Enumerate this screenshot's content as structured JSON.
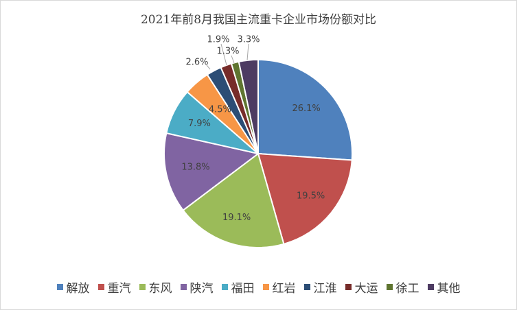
{
  "chart_data": {
    "type": "pie",
    "title": "2021年前8月我国主流重卡企业市场份额对比",
    "categories": [
      "解放",
      "重汽",
      "东风",
      "陕汽",
      "福田",
      "红岩",
      "江淮",
      "大运",
      "徐工",
      "其他"
    ],
    "values": [
      26.1,
      19.5,
      19.1,
      13.8,
      7.9,
      4.5,
      2.6,
      1.9,
      1.3,
      3.3
    ],
    "labels": [
      "26.1%",
      "19.5%",
      "19.1%",
      "13.8%",
      "7.9%",
      "4.5%",
      "2.6%",
      "1.9%",
      "1.3%",
      "3.3%"
    ],
    "colors": [
      "#4f81bd",
      "#c0504d",
      "#9bbb59",
      "#8064a2",
      "#4bacc6",
      "#f79646",
      "#2c4d75",
      "#772c2a",
      "#5f7530",
      "#4d3b62"
    ],
    "legend": "bottom",
    "start_angle": "12 o'clock",
    "direction": "clockwise"
  }
}
